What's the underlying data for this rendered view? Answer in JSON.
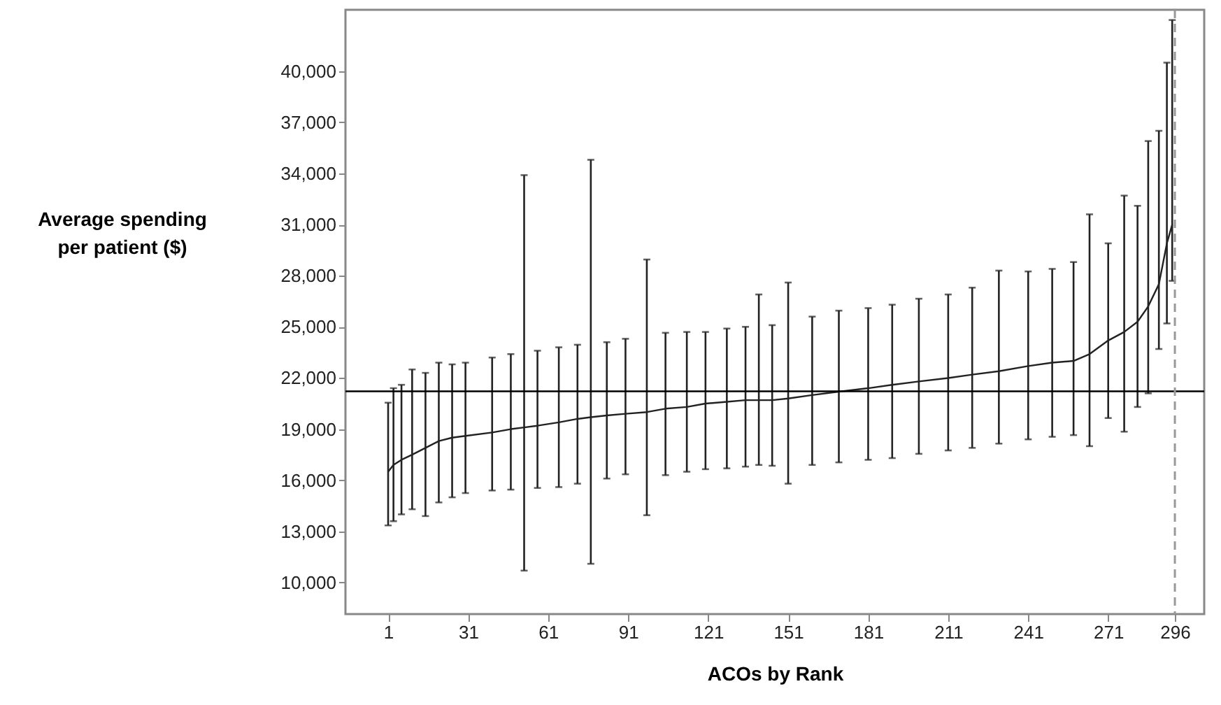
{
  "chart_data": {
    "type": "line",
    "xlabel": "ACOs by Rank",
    "ylabel": "Average spending per patient ($)",
    "x": [
      1,
      3,
      6,
      10,
      15,
      20,
      25,
      30,
      40,
      47,
      52,
      57,
      65,
      72,
      77,
      83,
      90,
      98,
      105,
      113,
      120,
      128,
      135,
      140,
      145,
      151,
      160,
      170,
      181,
      190,
      200,
      211,
      220,
      230,
      241,
      250,
      258,
      264,
      271,
      277,
      282,
      286,
      290,
      293,
      295
    ],
    "series": [
      {
        "color": "#222222",
        "values": [
          16500,
          16900,
          17200,
          17500,
          17900,
          18300,
          18500,
          18600,
          18800,
          19000,
          19100,
          19200,
          19400,
          19600,
          19700,
          19800,
          19900,
          20000,
          20200,
          20300,
          20500,
          20600,
          20700,
          20700,
          20700,
          20800,
          21000,
          21200,
          21400,
          21600,
          21800,
          22000,
          22200,
          22400,
          22700,
          22900,
          23000,
          23400,
          24200,
          24700,
          25300,
          26200,
          27500,
          29900,
          31000
        ],
        "errors": [
          [
            13350,
            20550
          ],
          [
            13600,
            21400
          ],
          [
            14000,
            21600
          ],
          [
            14300,
            22500
          ],
          [
            13900,
            22300
          ],
          [
            14700,
            22900
          ],
          [
            15000,
            22800
          ],
          [
            15250,
            22900
          ],
          [
            15400,
            23200
          ],
          [
            15450,
            23400
          ],
          [
            10700,
            33900
          ],
          [
            15550,
            23600
          ],
          [
            15600,
            23800
          ],
          [
            15800,
            23950
          ],
          [
            11100,
            34800
          ],
          [
            16100,
            24100
          ],
          [
            16350,
            24300
          ],
          [
            13950,
            28950
          ],
          [
            16300,
            24650
          ],
          [
            16500,
            24700
          ],
          [
            16650,
            24700
          ],
          [
            16700,
            24900
          ],
          [
            16800,
            25000
          ],
          [
            16900,
            26900
          ],
          [
            16850,
            25100
          ],
          [
            15800,
            27600
          ],
          [
            16900,
            25600
          ],
          [
            17050,
            25950
          ],
          [
            17200,
            26100
          ],
          [
            17300,
            26300
          ],
          [
            17550,
            26650
          ],
          [
            17750,
            26900
          ],
          [
            17900,
            27300
          ],
          [
            18150,
            28300
          ],
          [
            18400,
            28250
          ],
          [
            18550,
            28400
          ],
          [
            18650,
            28800
          ],
          [
            18000,
            31600
          ],
          [
            19650,
            29900
          ],
          [
            18850,
            32700
          ],
          [
            20300,
            32100
          ],
          [
            21100,
            35900
          ],
          [
            23700,
            36500
          ],
          [
            25200,
            40500
          ],
          [
            27700,
            43000
          ]
        ]
      }
    ],
    "xlim": [
      -15,
      307
    ],
    "xticks": [
      1,
      31,
      61,
      91,
      121,
      151,
      181,
      211,
      241,
      271,
      296
    ],
    "ylim": [
      8150,
      43600
    ],
    "yticks": [
      {
        "value": 10000,
        "label": "10,000"
      },
      {
        "value": 13000,
        "label": "13,000"
      },
      {
        "value": 16000,
        "label": "16,000"
      },
      {
        "value": 19000,
        "label": "19,000"
      },
      {
        "value": 22000,
        "label": "22,000"
      },
      {
        "value": 25000,
        "label": "25,000"
      },
      {
        "value": 28000,
        "label": "28,000"
      },
      {
        "value": 31000,
        "label": "31,000"
      },
      {
        "value": 34000,
        "label": "34,000"
      },
      {
        "value": 37000,
        "label": "37,000"
      },
      {
        "value": 40000,
        "label": "40,000"
      }
    ],
    "ref_lines": [
      {
        "axis": "y",
        "value": 21220,
        "color": "#000000",
        "line_style": "solid"
      },
      {
        "axis": "x",
        "value": 296,
        "color": "#999999",
        "line_style": "dashed"
      }
    ],
    "grid": false,
    "marker": "none",
    "line_style": "solid"
  }
}
